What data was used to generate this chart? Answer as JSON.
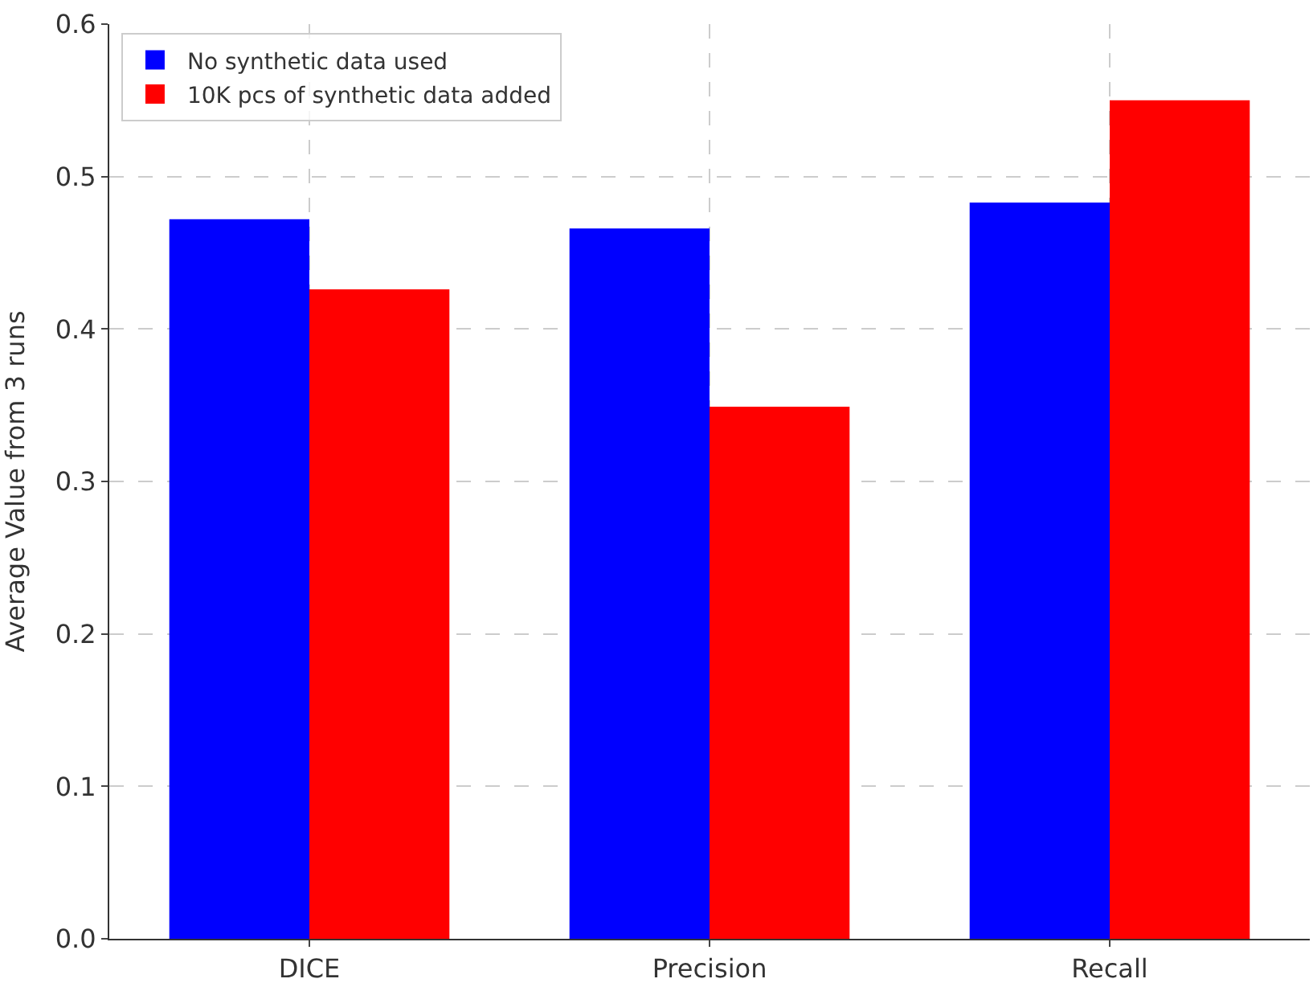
{
  "chart_data": {
    "type": "bar",
    "ylabel": "Average Value from 3 runs",
    "categories": [
      "DICE",
      "Precision",
      "Recall"
    ],
    "series": [
      {
        "name": "No synthetic data used",
        "color": "#0000ff",
        "values": [
          0.472,
          0.466,
          0.483
        ]
      },
      {
        "name": "10K pcs of synthetic data added",
        "color": "#ff0000",
        "values": [
          0.426,
          0.349,
          0.55
        ]
      }
    ],
    "ylim": [
      0,
      0.6
    ],
    "yticks": [
      {
        "value": 0,
        "label": "0.0"
      },
      0.1,
      0.2,
      0.3,
      0.4,
      0.5,
      0.6
    ],
    "grid": true,
    "legend": "top left"
  }
}
